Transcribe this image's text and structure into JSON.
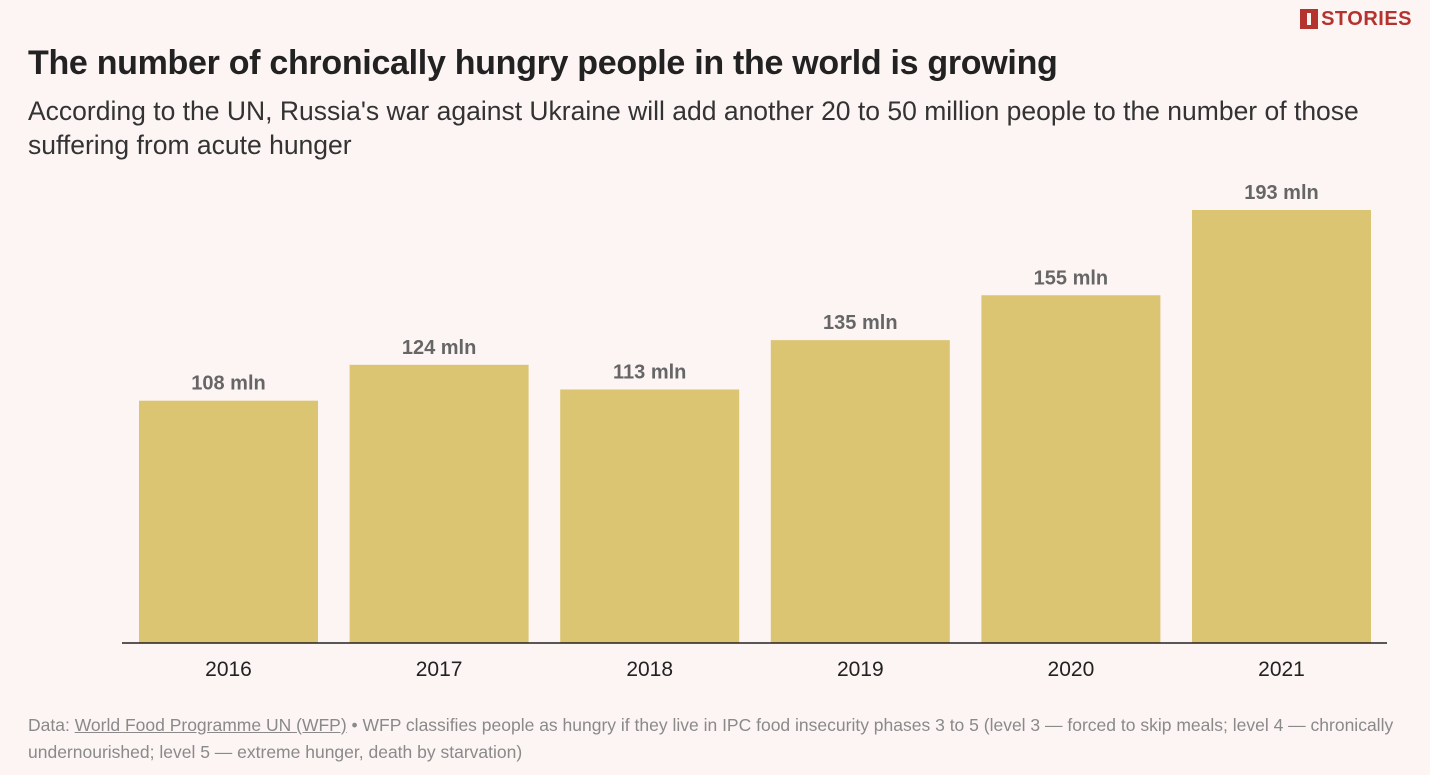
{
  "brand": {
    "logo_text": "STORIES",
    "color": "#b5332e"
  },
  "chart_data": {
    "type": "bar",
    "title": "The number of chronically hungry people in the world is growing",
    "subtitle": "According to the UN, Russia's war against Ukraine will add another 20 to 50 million people to the number of those suffering from acute hunger",
    "categories": [
      "2016",
      "2017",
      "2018",
      "2019",
      "2020",
      "2021"
    ],
    "values": [
      108,
      124,
      113,
      135,
      155,
      193
    ],
    "value_labels": [
      "108 mln",
      "124 mln",
      "113 mln",
      "135 mln",
      "155 mln",
      "193 mln"
    ],
    "unit": "mln",
    "xlabel": "",
    "ylabel": "",
    "ylim": [
      0,
      193
    ],
    "grid": false,
    "bar_color": "#dbc572",
    "label_color": "#666666",
    "axis_color": "#222222"
  },
  "footer": {
    "data_prefix": "Data: ",
    "source_link": "World Food Programme UN (WFP)",
    "note": " • WFP classifies people as hungry if they live in IPC food insecurity phases 3 to 5 (level 3 — forced to skip meals; level 4 — chronically undernourished; level 5 — extreme hunger, death by starvation)"
  }
}
